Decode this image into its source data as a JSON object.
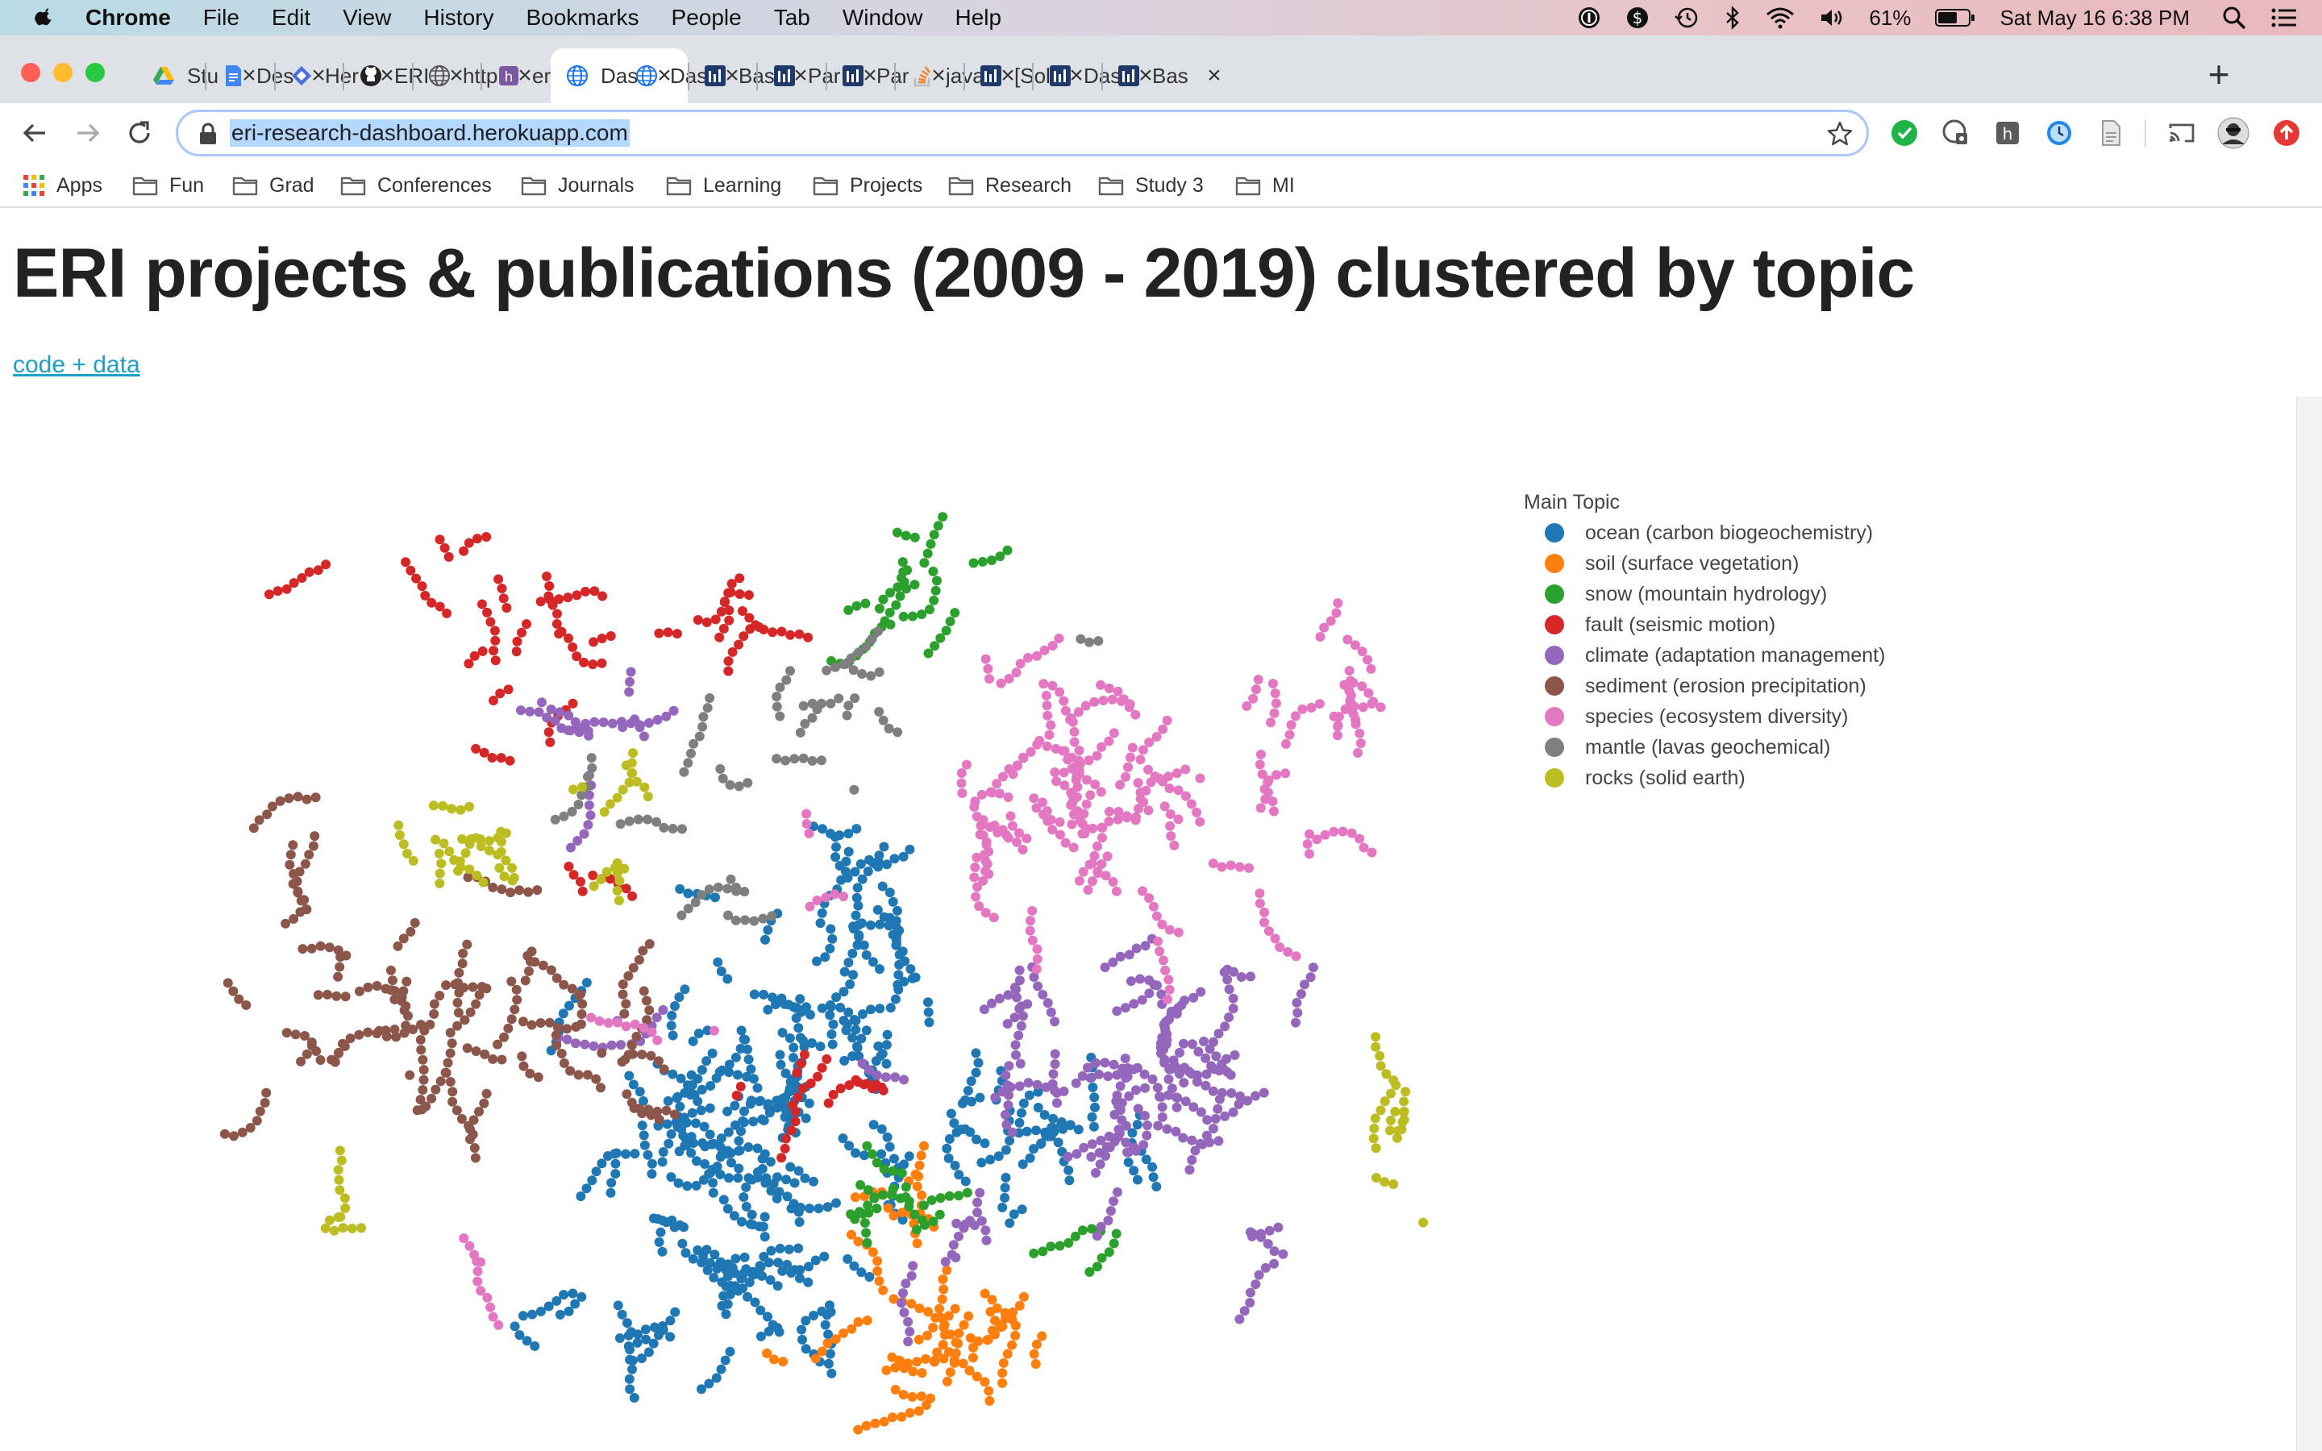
{
  "menubar": {
    "app_name": "Chrome",
    "items": [
      "File",
      "Edit",
      "View",
      "History",
      "Bookmarks",
      "People",
      "Tab",
      "Window",
      "Help"
    ],
    "battery": "61%",
    "datetime": "Sat May 16  6:38 PM"
  },
  "tabs": [
    {
      "label": "Stu",
      "icon": "google-drive-icon",
      "color": "#34a853"
    },
    {
      "label": "Des",
      "icon": "google-docs-icon",
      "color": "#4285f4"
    },
    {
      "label": "Her",
      "icon": "hero-icon",
      "color": "#4a6ee0"
    },
    {
      "label": "ERI",
      "icon": "github-icon",
      "color": "#222222"
    },
    {
      "label": "http",
      "icon": "globe-icon",
      "color": "#555555"
    },
    {
      "label": "eri-",
      "icon": "heroku-icon",
      "color": "#79589f"
    },
    {
      "label": "Das",
      "icon": "globe-icon",
      "color": "#1a73e8",
      "active": true
    },
    {
      "label": "Das",
      "icon": "globe-icon",
      "color": "#1a73e8"
    },
    {
      "label": "Bas",
      "icon": "plotly-icon",
      "color": "#1f3a68"
    },
    {
      "label": "Par",
      "icon": "plotly-icon",
      "color": "#1f3a68"
    },
    {
      "label": "Par",
      "icon": "plotly-icon",
      "color": "#1f3a68"
    },
    {
      "label": "java",
      "icon": "stackoverflow-icon",
      "color": "#f48024"
    },
    {
      "label": "[Sol",
      "icon": "plotly-icon",
      "color": "#1f3a68"
    },
    {
      "label": "Das",
      "icon": "plotly-icon",
      "color": "#1f3a68"
    },
    {
      "label": "Bas",
      "icon": "plotly-icon",
      "color": "#1f3a68"
    }
  ],
  "toolbar": {
    "url": "eri-research-dashboard.herokuapp.com"
  },
  "bookmarks": {
    "apps_label": "Apps",
    "folders": [
      "Fun",
      "Grad",
      "Conferences",
      "Journals",
      "Learning",
      "Projects",
      "Research",
      "Study 3",
      "MI"
    ]
  },
  "page": {
    "title": "ERI projects & publications (2009 - 2019) clustered by topic",
    "link_text": "code + data"
  },
  "chart_data": {
    "type": "scatter",
    "title": "",
    "xlabel": "",
    "ylabel": "",
    "grid": false,
    "legend_title": "Main Topic",
    "legend_position": "top-right",
    "series": [
      {
        "name": "ocean (carbon biogeochemistry)",
        "color": "#1f77b4"
      },
      {
        "name": "soil (surface vegetation)",
        "color": "#ff7f0e"
      },
      {
        "name": "snow (mountain hydrology)",
        "color": "#2ca02c"
      },
      {
        "name": "fault (seismic motion)",
        "color": "#d62728"
      },
      {
        "name": "climate (adaptation management)",
        "color": "#9467bd"
      },
      {
        "name": "sediment (erosion precipitation)",
        "color": "#8c564b"
      },
      {
        "name": "species (ecosystem diversity)",
        "color": "#e377c2"
      },
      {
        "name": "mantle (lavas geochemical)",
        "color": "#7f7f7f"
      },
      {
        "name": "rocks (solid earth)",
        "color": "#bcbd22"
      }
    ],
    "clusters": [
      {
        "series": 0,
        "cx": 0.5,
        "cy": 0.61,
        "sx": 0.06,
        "sy": 0.09,
        "n": 300
      },
      {
        "series": 0,
        "cx": 0.43,
        "cy": 0.78,
        "sx": 0.07,
        "sy": 0.06,
        "n": 200
      },
      {
        "series": 0,
        "cx": 0.35,
        "cy": 0.93,
        "sx": 0.05,
        "sy": 0.02,
        "n": 60
      },
      {
        "series": 0,
        "cx": 0.69,
        "cy": 0.69,
        "sx": 0.04,
        "sy": 0.04,
        "n": 90
      },
      {
        "series": 0,
        "cx": 0.54,
        "cy": 0.4,
        "sx": 0.02,
        "sy": 0.04,
        "n": 40
      },
      {
        "series": 1,
        "cx": 0.6,
        "cy": 0.92,
        "sx": 0.05,
        "sy": 0.035,
        "n": 120
      },
      {
        "series": 1,
        "cx": 0.56,
        "cy": 0.79,
        "sx": 0.015,
        "sy": 0.03,
        "n": 25
      },
      {
        "series": 2,
        "cx": 0.58,
        "cy": 0.1,
        "sx": 0.04,
        "sy": 0.03,
        "n": 55
      },
      {
        "series": 2,
        "cx": 0.56,
        "cy": 0.77,
        "sx": 0.025,
        "sy": 0.05,
        "n": 40
      },
      {
        "series": 2,
        "cx": 0.72,
        "cy": 0.84,
        "sx": 0.012,
        "sy": 0.02,
        "n": 15
      },
      {
        "series": 3,
        "cx": 0.25,
        "cy": 0.15,
        "sx": 0.05,
        "sy": 0.05,
        "n": 80
      },
      {
        "series": 3,
        "cx": 0.41,
        "cy": 0.14,
        "sx": 0.015,
        "sy": 0.04,
        "n": 35
      },
      {
        "series": 3,
        "cx": 0.5,
        "cy": 0.67,
        "sx": 0.03,
        "sy": 0.02,
        "n": 30
      },
      {
        "series": 3,
        "cx": 0.3,
        "cy": 0.43,
        "sx": 0.01,
        "sy": 0.02,
        "n": 10
      },
      {
        "series": 4,
        "cx": 0.77,
        "cy": 0.61,
        "sx": 0.07,
        "sy": 0.08,
        "n": 260
      },
      {
        "series": 4,
        "cx": 0.33,
        "cy": 0.27,
        "sx": 0.03,
        "sy": 0.03,
        "n": 45
      },
      {
        "series": 4,
        "cx": 0.63,
        "cy": 0.82,
        "sx": 0.02,
        "sy": 0.02,
        "n": 25
      },
      {
        "series": 4,
        "cx": 0.87,
        "cy": 0.82,
        "sx": 0.015,
        "sy": 0.025,
        "n": 18
      },
      {
        "series": 4,
        "cx": 0.34,
        "cy": 0.58,
        "sx": 0.015,
        "sy": 0.02,
        "n": 15
      },
      {
        "series": 5,
        "cx": 0.18,
        "cy": 0.56,
        "sx": 0.06,
        "sy": 0.07,
        "n": 180
      },
      {
        "series": 5,
        "cx": 0.07,
        "cy": 0.41,
        "sx": 0.02,
        "sy": 0.04,
        "n": 35
      },
      {
        "series": 5,
        "cx": 0.32,
        "cy": 0.63,
        "sx": 0.02,
        "sy": 0.05,
        "n": 40
      },
      {
        "series": 6,
        "cx": 0.73,
        "cy": 0.32,
        "sx": 0.08,
        "sy": 0.07,
        "n": 300
      },
      {
        "series": 6,
        "cx": 0.92,
        "cy": 0.22,
        "sx": 0.03,
        "sy": 0.02,
        "n": 40
      },
      {
        "series": 6,
        "cx": 0.22,
        "cy": 0.83,
        "sx": 0.008,
        "sy": 0.015,
        "n": 12
      },
      {
        "series": 6,
        "cx": 0.41,
        "cy": 0.6,
        "sx": 0.015,
        "sy": 0.02,
        "n": 10
      },
      {
        "series": 7,
        "cx": 0.48,
        "cy": 0.25,
        "sx": 0.05,
        "sy": 0.04,
        "n": 65
      },
      {
        "series": 7,
        "cx": 0.4,
        "cy": 0.42,
        "sx": 0.03,
        "sy": 0.04,
        "n": 25
      },
      {
        "series": 7,
        "cx": 0.72,
        "cy": 0.15,
        "sx": 0.004,
        "sy": 0.004,
        "n": 3
      },
      {
        "series": 8,
        "cx": 0.22,
        "cy": 0.37,
        "sx": 0.03,
        "sy": 0.025,
        "n": 45
      },
      {
        "series": 8,
        "cx": 0.33,
        "cy": 0.33,
        "sx": 0.015,
        "sy": 0.02,
        "n": 15
      },
      {
        "series": 8,
        "cx": 0.98,
        "cy": 0.7,
        "sx": 0.02,
        "sy": 0.05,
        "n": 30
      },
      {
        "series": 8,
        "cx": 0.1,
        "cy": 0.79,
        "sx": 0.012,
        "sy": 0.015,
        "n": 15
      },
      {
        "series": 8,
        "cx": 0.34,
        "cy": 0.42,
        "sx": 0.008,
        "sy": 0.015,
        "n": 10
      }
    ]
  }
}
